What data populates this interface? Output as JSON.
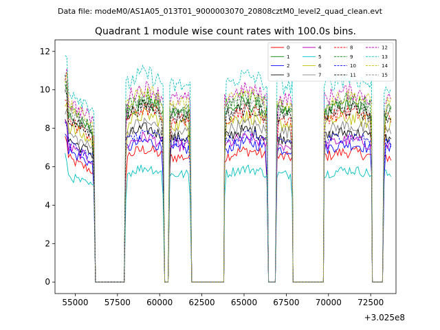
{
  "suptitle": "Data file: modeM0/AS1A05_013T01_9000003070_20808cztM0_level2_quad_clean.evt",
  "chart_data": {
    "type": "line",
    "title": "Quadrant 1 module wise count rates with 100.0s bins.",
    "xlabel": "",
    "ylabel": "",
    "x_offset_label": "+3.025e8",
    "xlim": [
      53800,
      74000
    ],
    "ylim": [
      -0.6,
      12.6
    ],
    "x_ticks": [
      55000,
      57500,
      60000,
      62500,
      65000,
      67500,
      70000,
      72500
    ],
    "x_tick_labels": [
      "55000",
      "57500",
      "60000",
      "62500",
      "65000",
      "67500",
      "70000",
      "72500"
    ],
    "y_ticks": [
      0,
      2,
      4,
      6,
      8,
      10,
      12
    ],
    "y_tick_labels": [
      "0",
      "2",
      "4",
      "6",
      "8",
      "10",
      "12"
    ],
    "legend_position": "upper right",
    "legend_columns": 4,
    "segments": [
      [
        54400,
        56150,
        "hi"
      ],
      [
        56200,
        57950,
        "zero"
      ],
      [
        58000,
        60250,
        "hi"
      ],
      [
        60300,
        60550,
        "zero"
      ],
      [
        60600,
        61850,
        "hi"
      ],
      [
        61900,
        63800,
        "zero"
      ],
      [
        63850,
        66400,
        "hi"
      ],
      [
        66450,
        66900,
        "zero"
      ],
      [
        66950,
        67850,
        "hi"
      ],
      [
        67900,
        69700,
        "zero"
      ],
      [
        69750,
        72550,
        "hi"
      ],
      [
        72600,
        73250,
        "zero"
      ],
      [
        73300,
        73750,
        "hi"
      ]
    ],
    "series": [
      {
        "name": "0",
        "level": 6.5,
        "color": "#ff0000",
        "dash": "solid"
      },
      {
        "name": "1",
        "level": 8.8,
        "color": "#008000",
        "dash": "solid"
      },
      {
        "name": "2",
        "level": 6.9,
        "color": "#0000ff",
        "dash": "solid"
      },
      {
        "name": "3",
        "level": 7.5,
        "color": "#000000",
        "dash": "solid"
      },
      {
        "name": "4",
        "level": 7.1,
        "color": "#bf00bf",
        "dash": "solid"
      },
      {
        "name": "5",
        "level": 5.6,
        "color": "#00bfbf",
        "dash": "solid"
      },
      {
        "name": "6",
        "level": 8.2,
        "color": "#bfbf00",
        "dash": "solid"
      },
      {
        "name": "7",
        "level": 7.8,
        "color": "#808080",
        "dash": "solid"
      },
      {
        "name": "8",
        "level": 8.5,
        "color": "#ff0000",
        "dash": "dashed"
      },
      {
        "name": "9",
        "level": 9.1,
        "color": "#008000",
        "dash": "dashed"
      },
      {
        "name": "10",
        "level": 7.3,
        "color": "#0000ff",
        "dash": "dashed"
      },
      {
        "name": "11",
        "level": 8.6,
        "color": "#000000",
        "dash": "dashed"
      },
      {
        "name": "12",
        "level": 9.5,
        "color": "#bf00bf",
        "dash": "dashed"
      },
      {
        "name": "13",
        "level": 10.2,
        "color": "#00bfbf",
        "dash": "dashed"
      },
      {
        "name": "14",
        "level": 9.3,
        "color": "#bfbf00",
        "dash": "dashed"
      },
      {
        "name": "15",
        "level": 8.9,
        "color": "#808080",
        "dash": "dashed"
      }
    ]
  }
}
